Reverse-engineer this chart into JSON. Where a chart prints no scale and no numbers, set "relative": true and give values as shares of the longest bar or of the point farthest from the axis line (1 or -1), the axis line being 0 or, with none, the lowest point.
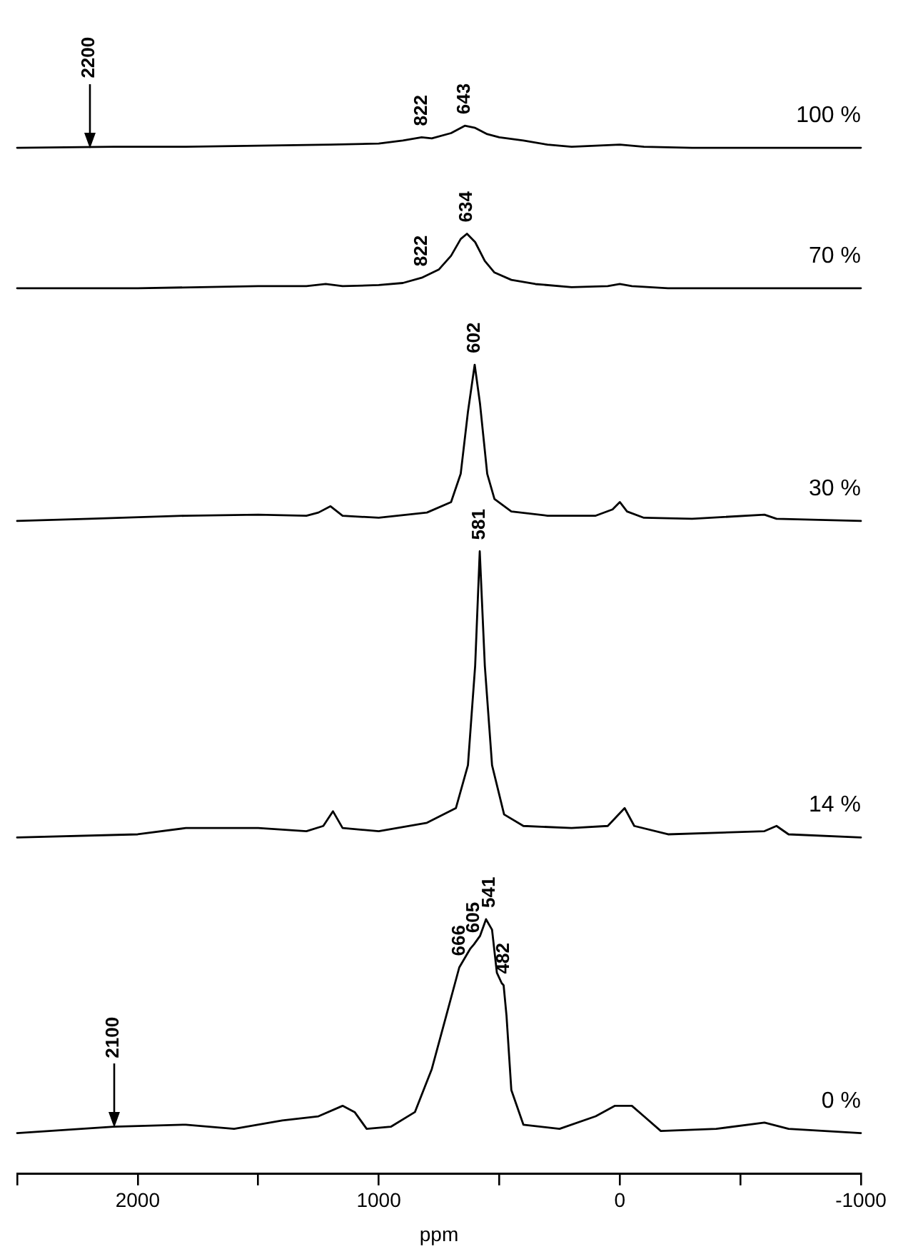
{
  "chart_data": {
    "type": "line",
    "relative": true,
    "xlim": [
      2500,
      -1000
    ],
    "xlabel": "ppm",
    "xticks": [
      {
        "value": 2500,
        "label": null
      },
      2000,
      {
        "value": 1500,
        "label": null
      },
      1000,
      {
        "value": 500,
        "label": null
      },
      0,
      {
        "value": -500,
        "label": null
      },
      -1000
    ],
    "series": [
      {
        "name": "100 %",
        "color": "#000000",
        "x": [
          2500,
          2100,
          1800,
          1500,
          1200,
          1000,
          900,
          822,
          780,
          700,
          643,
          600,
          550,
          500,
          400,
          300,
          200,
          0,
          -100,
          -300,
          -1000
        ],
        "values": [
          0.979,
          0.98,
          0.98,
          0.981,
          0.982,
          0.983,
          0.986,
          0.989,
          0.988,
          0.993,
          1,
          0.998,
          0.992,
          0.989,
          0.986,
          0.982,
          0.98,
          0.982,
          0.98,
          0.979,
          0.979
        ]
      },
      {
        "name": "70 %",
        "color": "#000000",
        "x": [
          2500,
          2000,
          1500,
          1300,
          1220,
          1150,
          1000,
          900,
          822,
          750,
          700,
          660,
          634,
          600,
          560,
          520,
          450,
          350,
          200,
          50,
          0,
          -50,
          -200,
          -1000
        ],
        "values": [
          0.845,
          0.845,
          0.847,
          0.847,
          0.849,
          0.847,
          0.848,
          0.85,
          0.855,
          0.863,
          0.876,
          0.892,
          0.897,
          0.889,
          0.871,
          0.86,
          0.853,
          0.849,
          0.846,
          0.847,
          0.849,
          0.847,
          0.845,
          0.845
        ]
      },
      {
        "name": "30 %",
        "color": "#000000",
        "x": [
          2500,
          2200,
          1800,
          1500,
          1300,
          1250,
          1200,
          1150,
          1000,
          800,
          700,
          660,
          630,
          602,
          580,
          550,
          520,
          450,
          300,
          100,
          30,
          0,
          -30,
          -100,
          -300,
          -600,
          -650,
          -1000
        ],
        "values": [
          0.623,
          0.625,
          0.628,
          0.629,
          0.628,
          0.631,
          0.637,
          0.628,
          0.626,
          0.631,
          0.641,
          0.668,
          0.727,
          0.772,
          0.735,
          0.668,
          0.644,
          0.632,
          0.628,
          0.628,
          0.634,
          0.641,
          0.632,
          0.626,
          0.625,
          0.629,
          0.625,
          0.623
        ]
      },
      {
        "name": "14 %",
        "color": "#000000",
        "x": [
          2500,
          2000,
          1800,
          1500,
          1300,
          1230,
          1190,
          1150,
          1000,
          800,
          680,
          630,
          600,
          581,
          560,
          530,
          480,
          400,
          200,
          50,
          -20,
          -60,
          -200,
          -600,
          -650,
          -700,
          -1000
        ],
        "values": [
          0.321,
          0.324,
          0.33,
          0.33,
          0.327,
          0.332,
          0.346,
          0.33,
          0.327,
          0.335,
          0.349,
          0.39,
          0.485,
          0.594,
          0.485,
          0.39,
          0.343,
          0.332,
          0.33,
          0.332,
          0.349,
          0.332,
          0.324,
          0.327,
          0.332,
          0.324,
          0.321
        ]
      },
      {
        "name": "0 %",
        "color": "#000000",
        "x": [
          2500,
          2100,
          1800,
          1600,
          1400,
          1250,
          1150,
          1100,
          1050,
          950,
          850,
          780,
          720,
          666,
          620,
          605,
          580,
          555,
          530,
          510,
          490,
          482,
          470,
          450,
          400,
          250,
          100,
          20,
          -50,
          -100,
          -170,
          -400,
          -600,
          -700,
          -1000
        ],
        "values": [
          0.039,
          0.045,
          0.047,
          0.043,
          0.051,
          0.055,
          0.065,
          0.059,
          0.043,
          0.045,
          0.059,
          0.1,
          0.151,
          0.197,
          0.215,
          0.219,
          0.227,
          0.243,
          0.233,
          0.192,
          0.182,
          0.18,
          0.151,
          0.08,
          0.047,
          0.043,
          0.055,
          0.065,
          0.065,
          0.055,
          0.041,
          0.043,
          0.049,
          0.043,
          0.039
        ]
      }
    ],
    "annotations": [
      {
        "text": "2200",
        "x": 2200,
        "y": 0.98
      },
      {
        "text": "822",
        "x": 822,
        "y": 0.989
      },
      {
        "text": "643",
        "x": 643,
        "y": 1
      },
      {
        "text": "822",
        "x": 822,
        "y": 0.855
      },
      {
        "text": "634",
        "x": 634,
        "y": 0.897
      },
      {
        "text": "602",
        "x": 602,
        "y": 0.772
      },
      {
        "text": "581",
        "x": 581,
        "y": 0.594
      },
      {
        "text": "666",
        "x": 666,
        "y": 0.197
      },
      {
        "text": "605",
        "x": 605,
        "y": 0.219
      },
      {
        "text": "541",
        "x": 541,
        "y": 0.243
      },
      {
        "text": "482",
        "x": 482,
        "y": 0.18
      },
      {
        "text": "2100",
        "x": 2100,
        "y": 0.045
      }
    ]
  }
}
